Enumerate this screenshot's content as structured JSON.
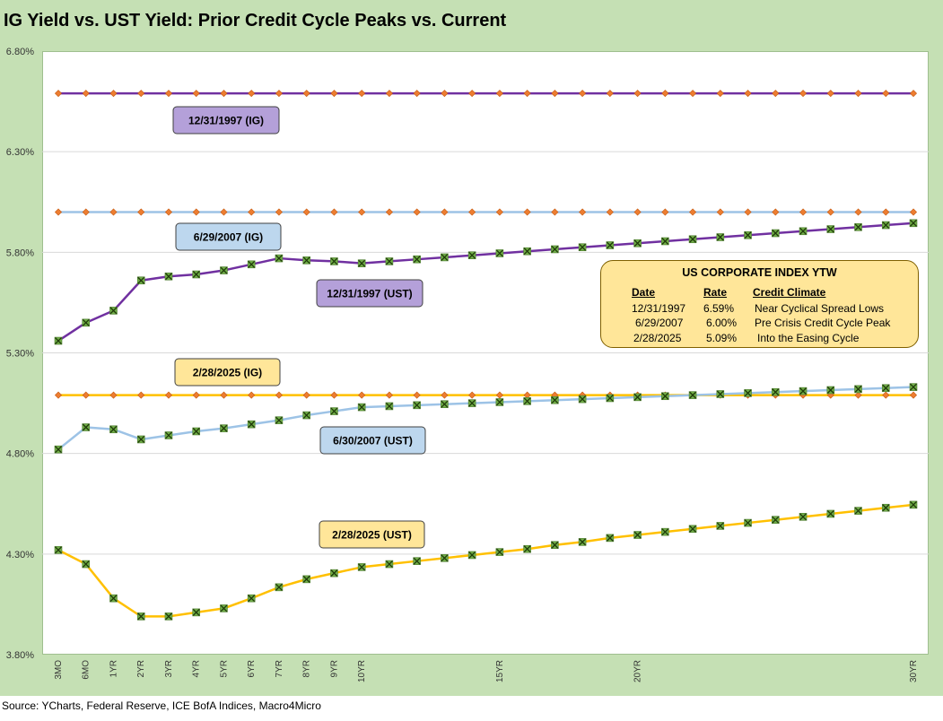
{
  "title": "IG Yield vs. UST Yield: Prior Credit Cycle Peaks vs. Current",
  "source": "Source: YCharts, Federal Reserve, ICE BofA Indices, Macro4Micro",
  "info_box": {
    "title": "US CORPORATE  INDEX YTW",
    "headers": [
      "Date",
      "Rate",
      "Credit Climate"
    ],
    "rows": [
      {
        "date": "12/31/1997",
        "rate": "6.59%",
        "climate": "Near Cyclical Spread Lows"
      },
      {
        "date": "6/29/2007",
        "rate": "6.00%",
        "climate": "Pre Crisis Credit Cycle Peak"
      },
      {
        "date": "2/28/2025",
        "rate": "5.09%",
        "climate": "Into the Easing Cycle"
      }
    ]
  },
  "chart_data": {
    "type": "line",
    "title": "IG Yield vs. UST Yield: Prior Credit Cycle Peaks vs. Current",
    "ylim": [
      3.8,
      6.8
    ],
    "yticks": [
      "3.80%",
      "4.30%",
      "4.80%",
      "5.30%",
      "5.80%",
      "6.30%",
      "6.80%"
    ],
    "ytick_values": [
      3.8,
      4.3,
      4.8,
      5.3,
      5.8,
      6.3,
      6.8
    ],
    "x": [
      0.25,
      0.5,
      1,
      2,
      3,
      4,
      5,
      6,
      7,
      8,
      9,
      10,
      11,
      12,
      13,
      14,
      15,
      16,
      17,
      18,
      19,
      20,
      21,
      22,
      23,
      24,
      25,
      26,
      27,
      28,
      29,
      30
    ],
    "xtick_labels": [
      {
        "x": 0.25,
        "label": "3MO"
      },
      {
        "x": 0.5,
        "label": "6MO"
      },
      {
        "x": 1,
        "label": "1YR"
      },
      {
        "x": 2,
        "label": "2YR"
      },
      {
        "x": 3,
        "label": "3YR"
      },
      {
        "x": 4,
        "label": "4YR"
      },
      {
        "x": 5,
        "label": "5YR"
      },
      {
        "x": 6,
        "label": "6YR"
      },
      {
        "x": 7,
        "label": "7YR"
      },
      {
        "x": 8,
        "label": "8YR"
      },
      {
        "x": 9,
        "label": "9YR"
      },
      {
        "x": 10,
        "label": "10YR"
      },
      {
        "x": 15,
        "label": "15YR"
      },
      {
        "x": 20,
        "label": "20YR"
      },
      {
        "x": 30,
        "label": "30YR"
      }
    ],
    "grid": true,
    "series": [
      {
        "label": "12/31/1997 (IG)",
        "color": "#7030a0",
        "marker": "diamond",
        "marker_color": "#ed7d31",
        "values": [
          6.59,
          6.59,
          6.59,
          6.59,
          6.59,
          6.59,
          6.59,
          6.59,
          6.59,
          6.59,
          6.59,
          6.59,
          6.59,
          6.59,
          6.59,
          6.59,
          6.59,
          6.59,
          6.59,
          6.59,
          6.59,
          6.59,
          6.59,
          6.59,
          6.59,
          6.59,
          6.59,
          6.59,
          6.59,
          6.59,
          6.59,
          6.59
        ]
      },
      {
        "label": "6/29/2007 (IG)",
        "color": "#9dc3e6",
        "marker": "diamond",
        "marker_color": "#ed7d31",
        "values": [
          6.0,
          6.0,
          6.0,
          6.0,
          6.0,
          6.0,
          6.0,
          6.0,
          6.0,
          6.0,
          6.0,
          6.0,
          6.0,
          6.0,
          6.0,
          6.0,
          6.0,
          6.0,
          6.0,
          6.0,
          6.0,
          6.0,
          6.0,
          6.0,
          6.0,
          6.0,
          6.0,
          6.0,
          6.0,
          6.0,
          6.0,
          6.0
        ]
      },
      {
        "label": "12/31/1997 (UST)",
        "color": "#7030a0",
        "marker": "x",
        "marker_color": "#70ad47",
        "values": [
          5.36,
          5.45,
          5.51,
          5.66,
          5.68,
          5.69,
          5.71,
          5.74,
          5.77,
          5.76,
          5.755,
          5.745,
          5.755,
          5.765,
          5.775,
          5.785,
          5.795,
          5.805,
          5.815,
          5.825,
          5.835,
          5.845,
          5.855,
          5.865,
          5.875,
          5.885,
          5.895,
          5.905,
          5.915,
          5.925,
          5.935,
          5.945
        ]
      },
      {
        "label": "2/28/2025 (IG)",
        "color": "#ffc000",
        "marker": "diamond",
        "marker_color": "#ed7d31",
        "values": [
          5.09,
          5.09,
          5.09,
          5.09,
          5.09,
          5.09,
          5.09,
          5.09,
          5.09,
          5.09,
          5.09,
          5.09,
          5.09,
          5.09,
          5.09,
          5.09,
          5.09,
          5.09,
          5.09,
          5.09,
          5.09,
          5.09,
          5.09,
          5.09,
          5.09,
          5.09,
          5.09,
          5.09,
          5.09,
          5.09,
          5.09,
          5.09
        ]
      },
      {
        "label": "6/30/2007 (UST)",
        "color": "#9dc3e6",
        "marker": "x",
        "marker_color": "#70ad47",
        "values": [
          4.82,
          4.93,
          4.92,
          4.87,
          4.89,
          4.91,
          4.925,
          4.945,
          4.965,
          4.99,
          5.01,
          5.03,
          5.035,
          5.04,
          5.045,
          5.05,
          5.055,
          5.06,
          5.065,
          5.07,
          5.075,
          5.08,
          5.085,
          5.09,
          5.095,
          5.1,
          5.105,
          5.11,
          5.115,
          5.12,
          5.125,
          5.13
        ]
      },
      {
        "label": "2/28/2025 (UST)",
        "color": "#ffc000",
        "marker": "x",
        "marker_color": "#70ad47",
        "values": [
          4.32,
          4.25,
          4.08,
          3.99,
          3.99,
          4.01,
          4.03,
          4.08,
          4.135,
          4.175,
          4.205,
          4.235,
          4.25,
          4.265,
          4.28,
          4.295,
          4.31,
          4.325,
          4.345,
          4.36,
          4.38,
          4.395,
          4.41,
          4.425,
          4.44,
          4.455,
          4.47,
          4.485,
          4.5,
          4.515,
          4.53,
          4.545
        ]
      }
    ],
    "callouts": [
      {
        "text": "12/31/1997 (IG)",
        "fill": "#b4a0d9"
      },
      {
        "text": "6/29/2007 (IG)",
        "fill": "#bdd7ee"
      },
      {
        "text": "12/31/1997 (UST)",
        "fill": "#b4a0d9"
      },
      {
        "text": "2/28/2025 (IG)",
        "fill": "#ffe699"
      },
      {
        "text": "6/30/2007 (UST)",
        "fill": "#bdd7ee"
      },
      {
        "text": "2/28/2025 (UST)",
        "fill": "#ffe699"
      }
    ]
  }
}
